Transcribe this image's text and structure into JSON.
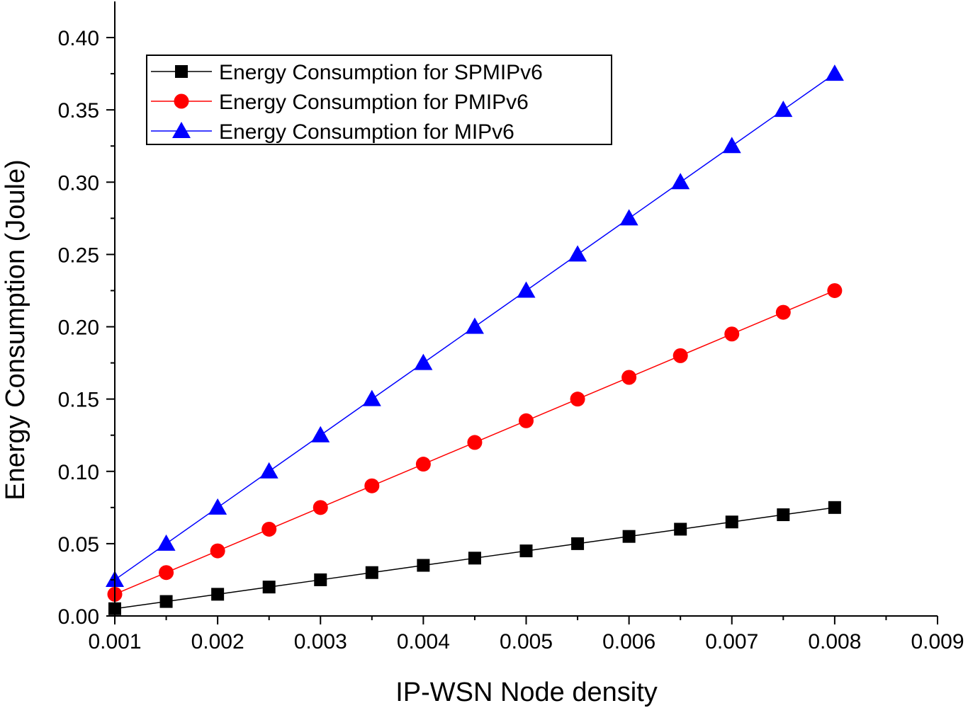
{
  "chart_data": {
    "type": "line",
    "title": "",
    "xlabel": "IP-WSN Node density",
    "ylabel": "Energy Consumption (Joule)",
    "xlim": [
      0.001,
      0.009
    ],
    "ylim": [
      0.0,
      0.425
    ],
    "grid": false,
    "legend_position": "top-left",
    "x_ticks": [
      "0.001",
      "0.002",
      "0.003",
      "0.004",
      "0.005",
      "0.006",
      "0.007",
      "0.008",
      "0.009"
    ],
    "y_ticks": [
      "0.00",
      "0.05",
      "0.10",
      "0.15",
      "0.20",
      "0.25",
      "0.30",
      "0.35",
      "0.40"
    ],
    "x": [
      0.001,
      0.0015,
      0.002,
      0.0025,
      0.003,
      0.0035,
      0.004,
      0.0045,
      0.005,
      0.0055,
      0.006,
      0.0065,
      0.007,
      0.0075,
      0.008
    ],
    "series": [
      {
        "name": "Energy Consumption for SPMIPv6",
        "color": "#000000",
        "marker": "square",
        "values": [
          0.005,
          0.01,
          0.015,
          0.02,
          0.025,
          0.03,
          0.035,
          0.04,
          0.045,
          0.05,
          0.055,
          0.06,
          0.065,
          0.07,
          0.075
        ]
      },
      {
        "name": "Energy Consumption for PMIPv6",
        "color": "#ff0000",
        "marker": "circle",
        "values": [
          0.015,
          0.03,
          0.045,
          0.06,
          0.075,
          0.09,
          0.105,
          0.12,
          0.135,
          0.15,
          0.165,
          0.18,
          0.195,
          0.21,
          0.225
        ]
      },
      {
        "name": "Energy Consumption for MIPv6",
        "color": "#0000ff",
        "marker": "triangle",
        "values": [
          0.025,
          0.05,
          0.075,
          0.1,
          0.125,
          0.15,
          0.175,
          0.2,
          0.225,
          0.25,
          0.275,
          0.3,
          0.325,
          0.35,
          0.375
        ]
      }
    ]
  }
}
